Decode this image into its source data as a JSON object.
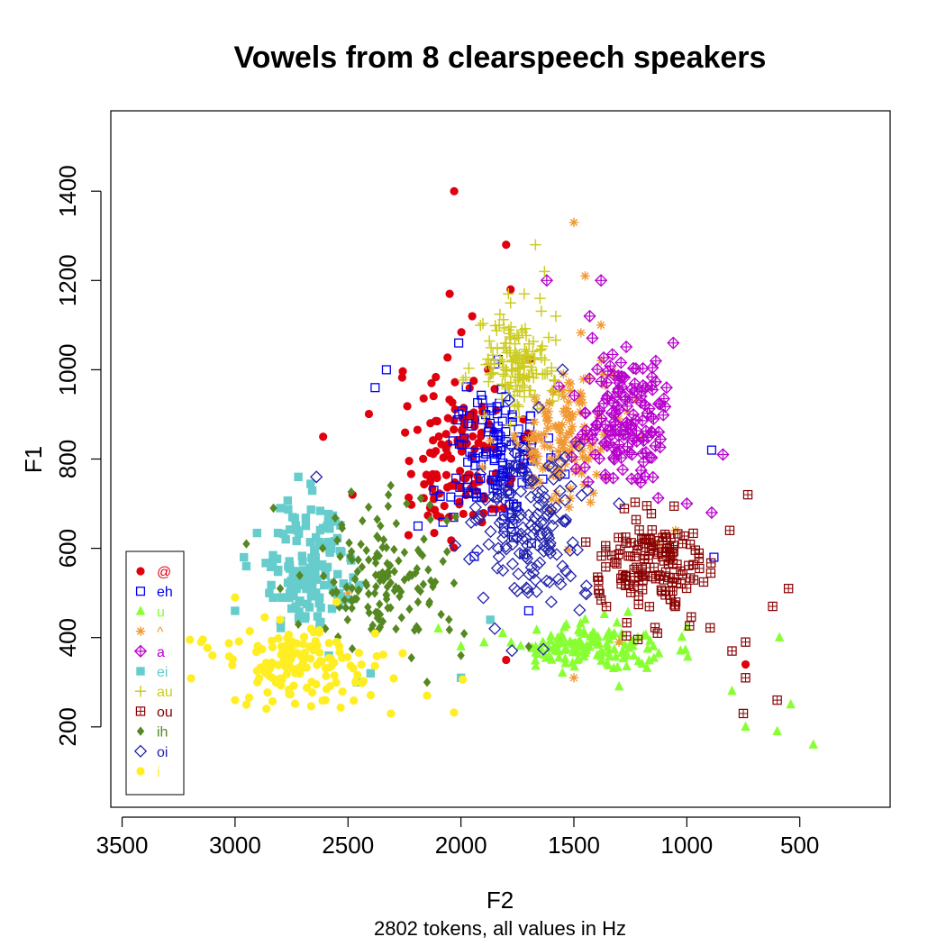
{
  "chart_data": {
    "type": "scatter",
    "title": "Vowels from 8 clearspeech speakers",
    "xlabel": "F2",
    "ylabel": "F1",
    "subtitle": "2802 tokens, all values in Hz",
    "x_reversed": true,
    "y_reversed": true,
    "xlim": [
      3550,
      100
    ],
    "ylim": [
      1580,
      20
    ],
    "x_ticks": [
      3500,
      3000,
      2500,
      2000,
      1500,
      1000,
      500
    ],
    "y_ticks": [
      200,
      400,
      600,
      800,
      1000,
      1200,
      1400
    ],
    "legend_position": "bottom-left",
    "series": [
      {
        "name": "@",
        "marker": "filled-circle",
        "color": "#e0000d",
        "centroid": [
          2000,
          820
        ],
        "spread": [
          230,
          190
        ],
        "points": [
          [
            2030,
            1400
          ],
          [
            1800,
            1280
          ],
          [
            1780,
            1180
          ],
          [
            2050,
            1170
          ],
          [
            2610,
            850
          ],
          [
            2480,
            720
          ],
          [
            1800,
            350
          ],
          [
            740,
            340
          ],
          [
            1880,
            1000
          ],
          [
            1950,
            1120
          ]
        ]
      },
      {
        "name": "eh",
        "marker": "open-square",
        "color": "#0000ee",
        "centroid": [
          1850,
          800
        ],
        "spread": [
          200,
          150
        ],
        "points": [
          [
            2380,
            960
          ],
          [
            2330,
            1000
          ],
          [
            2120,
            730
          ],
          [
            890,
            820
          ],
          [
            880,
            580
          ],
          [
            1700,
            460
          ],
          [
            2190,
            650
          ],
          [
            2010,
            1060
          ]
        ]
      },
      {
        "name": "u",
        "marker": "filled-triangle",
        "color": "#88ff33",
        "centroid": [
          1450,
          380
        ],
        "spread": [
          320,
          50
        ],
        "points": [
          [
            440,
            160
          ],
          [
            540,
            250
          ],
          [
            600,
            190
          ],
          [
            740,
            200
          ],
          [
            800,
            280
          ],
          [
            590,
            400
          ],
          [
            2100,
            420
          ],
          [
            2000,
            380
          ],
          [
            1300,
            290
          ]
        ]
      },
      {
        "name": "^",
        "marker": "asterisk",
        "color": "#f09933",
        "centroid": [
          1550,
          850
        ],
        "spread": [
          220,
          140
        ],
        "points": [
          [
            1500,
            1330
          ],
          [
            1450,
            1210
          ],
          [
            1380,
            1100
          ],
          [
            1500,
            310
          ],
          [
            1300,
            390
          ],
          [
            2500,
            500
          ],
          [
            1130,
            610
          ],
          [
            1050,
            640
          ]
        ]
      },
      {
        "name": "a",
        "marker": "crossed-diamond",
        "color": "#b700cc",
        "centroid": [
          1280,
          890
        ],
        "spread": [
          180,
          130
        ],
        "points": [
          [
            1620,
            1200
          ],
          [
            1380,
            1200
          ],
          [
            1430,
            1120
          ],
          [
            1060,
            1060
          ],
          [
            840,
            810
          ],
          [
            1000,
            700
          ],
          [
            890,
            680
          ],
          [
            1090,
            960
          ]
        ]
      },
      {
        "name": "ei",
        "marker": "filled-square",
        "color": "#66cccc",
        "centroid": [
          2680,
          560
        ],
        "spread": [
          180,
          130
        ],
        "points": [
          [
            2720,
            760
          ],
          [
            2800,
            690
          ],
          [
            2460,
            300
          ],
          [
            2400,
            320
          ],
          [
            2000,
            310
          ],
          [
            1870,
            440
          ],
          [
            3000,
            460
          ],
          [
            2950,
            560
          ],
          [
            2600,
            540
          ]
        ]
      },
      {
        "name": "au",
        "marker": "plus",
        "color": "#cccc22",
        "centroid": [
          1750,
          1010
        ],
        "spread": [
          150,
          90
        ],
        "points": [
          [
            1670,
            1280
          ],
          [
            1630,
            1220
          ],
          [
            1650,
            1160
          ],
          [
            1720,
            1170
          ],
          [
            1790,
            1170
          ],
          [
            1580,
            1120
          ],
          [
            1830,
            1100
          ],
          [
            1800,
            1050
          ]
        ]
      },
      {
        "name": "ou",
        "marker": "squared-plus",
        "color": "#880000",
        "centroid": [
          1150,
          560
        ],
        "spread": [
          210,
          110
        ],
        "points": [
          [
            600,
            260
          ],
          [
            550,
            510
          ],
          [
            620,
            470
          ],
          [
            750,
            230
          ],
          [
            800,
            370
          ],
          [
            740,
            310
          ],
          [
            740,
            390
          ],
          [
            730,
            720
          ],
          [
            810,
            640
          ],
          [
            1130,
            410
          ]
        ]
      },
      {
        "name": "ih",
        "marker": "filled-diamond",
        "color": "#558822",
        "centroid": [
          2340,
          540
        ],
        "spread": [
          260,
          140
        ],
        "points": [
          [
            2950,
            610
          ],
          [
            2800,
            510
          ],
          [
            2720,
            430
          ],
          [
            2600,
            420
          ],
          [
            2150,
            300
          ],
          [
            2000,
            360
          ],
          [
            1700,
            380
          ],
          [
            2830,
            690
          ],
          [
            2240,
            700
          ]
        ]
      },
      {
        "name": "oi",
        "marker": "open-diamond",
        "color": "#2222aa",
        "centroid": [
          1700,
          640
        ],
        "spread": [
          240,
          160
        ],
        "points": [
          [
            2640,
            760
          ],
          [
            1850,
            420
          ],
          [
            1600,
            480
          ],
          [
            1450,
            500
          ],
          [
            1550,
            560
          ],
          [
            1780,
            830
          ],
          [
            1550,
            1000
          ],
          [
            1300,
            700
          ]
        ]
      },
      {
        "name": "i",
        "marker": "filled-circle",
        "color": "#ffee22",
        "centroid": [
          2720,
          340
        ],
        "spread": [
          320,
          70
        ],
        "points": [
          [
            3200,
            395
          ],
          [
            3150,
            390
          ],
          [
            3100,
            360
          ],
          [
            3000,
            260
          ],
          [
            2950,
            250
          ],
          [
            2550,
            390
          ],
          [
            2150,
            270
          ],
          [
            2310,
            230
          ],
          [
            2550,
            480
          ],
          [
            2600,
            260
          ],
          [
            3000,
            490
          ],
          [
            2800,
            440
          ]
        ]
      }
    ]
  }
}
